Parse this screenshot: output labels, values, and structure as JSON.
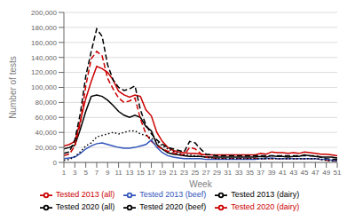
{
  "chart_data": {
    "type": "line",
    "xlabel": "Week",
    "ylabel": "Number of tests",
    "x": [
      1,
      2,
      3,
      4,
      5,
      6,
      7,
      8,
      9,
      10,
      11,
      12,
      13,
      14,
      15,
      16,
      17,
      18,
      19,
      20,
      21,
      22,
      23,
      24,
      25,
      26,
      27,
      28,
      29,
      30,
      31,
      32,
      33,
      34,
      35,
      36,
      37,
      38,
      39,
      40,
      41,
      42,
      43,
      44,
      45,
      46,
      47,
      48,
      49,
      50,
      51
    ],
    "xlim": [
      1,
      51
    ],
    "xticks": [
      1,
      3,
      5,
      7,
      9,
      11,
      13,
      15,
      17,
      19,
      21,
      23,
      25,
      27,
      29,
      31,
      33,
      35,
      37,
      39,
      41,
      43,
      45,
      47,
      49,
      51
    ],
    "ylim": [
      0,
      200000
    ],
    "yticks": [
      0,
      {
        "value": 20000,
        "label": "20,000"
      },
      {
        "value": 40000,
        "label": "40,000"
      },
      {
        "value": 60000,
        "label": "60,000"
      },
      {
        "value": 80000,
        "label": "80,000"
      },
      {
        "value": 100000,
        "label": "100,000"
      },
      {
        "value": 120000,
        "label": "120,000"
      },
      {
        "value": 140000,
        "label": "140,000"
      },
      {
        "value": 160000,
        "label": "160,000"
      },
      {
        "value": 180000,
        "label": "180,000"
      },
      {
        "value": 200000,
        "label": "200,000"
      }
    ],
    "grid": "y",
    "legend": "bottom",
    "series": [
      {
        "name": "Tested 2013 (all)",
        "color": "#cc0000",
        "line_style": "solid",
        "values": [
          22000,
          24000,
          28000,
          55000,
          85000,
          108000,
          128000,
          125000,
          120000,
          110000,
          95000,
          90000,
          87000,
          90000,
          88000,
          70000,
          62000,
          40000,
          28000,
          20000,
          16000,
          14000,
          13000,
          12000,
          12000,
          11000,
          10000,
          10000,
          10000,
          10000,
          10000,
          10000,
          10000,
          10000,
          10000,
          10000,
          12000,
          11000,
          14000,
          13000,
          13000,
          12000,
          13000,
          12000,
          14000,
          13000,
          12000,
          11000,
          11000,
          10000,
          9000
        ]
      },
      {
        "name": "Tested 2020 (all)",
        "color": "#000000",
        "line_style": "dashed",
        "values": [
          12000,
          14000,
          30000,
          65000,
          115000,
          148000,
          178000,
          168000,
          130000,
          110000,
          100000,
          96000,
          98000,
          102000,
          70000,
          50000,
          38000,
          30000,
          24000,
          20000,
          18000,
          16000,
          14000,
          28000,
          26000,
          18000,
          11000,
          10000,
          9000,
          9000,
          9000,
          9000,
          9000,
          9000,
          9000,
          9000,
          9000,
          9000,
          9000,
          9000,
          9000,
          9000,
          9000,
          9000,
          9000,
          9000,
          9000,
          7000,
          5000,
          4000,
          4000
        ]
      },
      {
        "name": "Tested 2013 (dairy)",
        "color": "#000000",
        "line_style": "solid",
        "values": [
          18000,
          20000,
          23000,
          44000,
          68000,
          88000,
          90000,
          88000,
          83000,
          76000,
          68000,
          63000,
          60000,
          63000,
          60000,
          48000,
          42000,
          24000,
          18000,
          13000,
          11000,
          10000,
          9000,
          8000,
          8000,
          8000,
          7000,
          7000,
          7000,
          7000,
          7000,
          7000,
          7000,
          7000,
          7000,
          7000,
          8000,
          7000,
          9000,
          8000,
          8000,
          7000,
          8000,
          8000,
          10000,
          9000,
          8000,
          7000,
          7000,
          7000,
          6000
        ]
      },
      {
        "name": "Tested 2020 (dairy)",
        "color": "#cc0000",
        "line_style": "dashed",
        "values": [
          9000,
          11000,
          22000,
          52000,
          102000,
          138000,
          148000,
          142000,
          112000,
          98000,
          86000,
          80000,
          82000,
          86000,
          58000,
          38000,
          28000,
          22000,
          18000,
          15000,
          13000,
          11000,
          10000,
          20000,
          18000,
          12000,
          7000,
          6000,
          5000,
          5000,
          5000,
          5000,
          5000,
          5000,
          5000,
          5000,
          5000,
          5000,
          5000,
          5000,
          5000,
          5000,
          5000,
          5000,
          5000,
          5000,
          5000,
          4000,
          3000,
          2000,
          2000
        ]
      },
      {
        "name": "Tested 2013 (beef)",
        "color": "#3355bb",
        "line_style": "solid",
        "values": [
          5000,
          6000,
          7000,
          12000,
          18000,
          22000,
          25000,
          26000,
          24000,
          22000,
          20000,
          19000,
          19000,
          20000,
          22000,
          24000,
          30000,
          20000,
          13000,
          9000,
          7000,
          6000,
          5000,
          5000,
          5000,
          5000,
          4000,
          4000,
          4000,
          4000,
          4000,
          4000,
          4000,
          4000,
          4000,
          4000,
          5000,
          5000,
          6000,
          5000,
          5000,
          5000,
          5000,
          5000,
          5000,
          5000,
          5000,
          4000,
          4000,
          3000,
          2000
        ]
      },
      {
        "name": "Tested 2020 (beef)",
        "color": "#000000",
        "line_style": "dotted",
        "values": [
          3000,
          4000,
          8000,
          14000,
          22000,
          26000,
          34000,
          36000,
          38000,
          40000,
          38000,
          40000,
          42000,
          42000,
          38000,
          36000,
          32000,
          28000,
          22000,
          18000,
          15000,
          12000,
          10000,
          10000,
          9000,
          8000,
          7000,
          6000,
          5000,
          5000,
          5000,
          5000,
          5000,
          5000,
          5000,
          5000,
          5000,
          5000,
          5000,
          5000,
          5000,
          5000,
          5000,
          5000,
          5000,
          5000,
          5000,
          4000,
          3000,
          2000,
          2000
        ]
      }
    ]
  }
}
